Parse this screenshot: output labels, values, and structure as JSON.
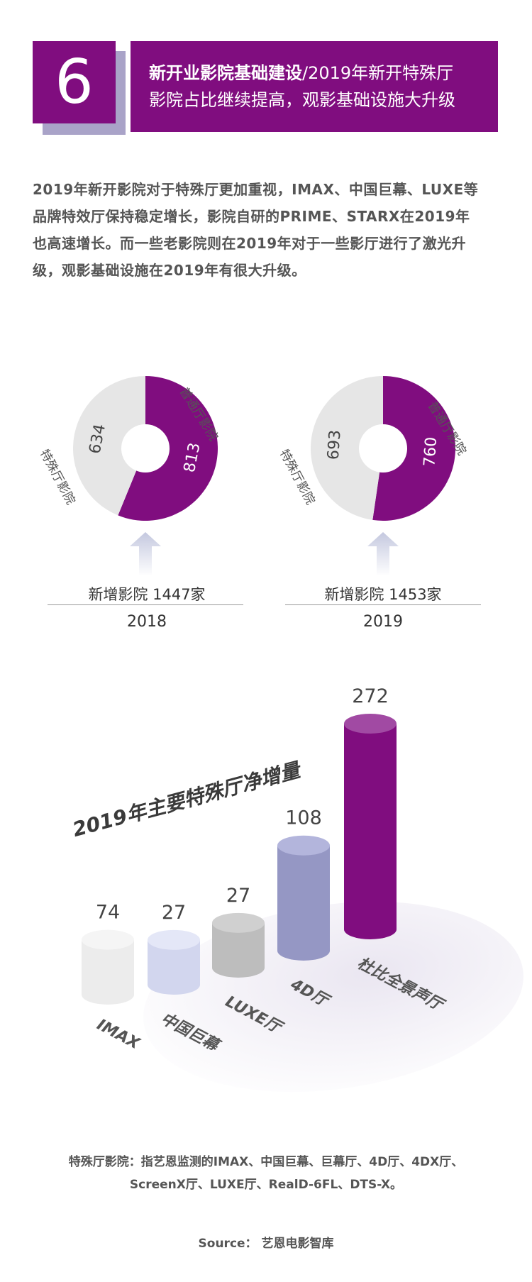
{
  "header": {
    "section_number": "6",
    "title_bold": "新开业影院基础建设",
    "title_sep": "/",
    "title_line1_rest": "2019年新开特殊厅",
    "title_line2": "影院占比继续提高，观影基础设施大升级"
  },
  "intro": {
    "lines": [
      "2019年新开影院对于特殊厅更加重视，IMAX、中国巨幕、LUXE等",
      "品牌特效厅保持稳定增长，影院自研的PRIME、STARX在2019年",
      "也高速增长。而一些老影院则在2019年对于一些影厅进行了激光升",
      "级，观影基础设施在2019年有很大升级。"
    ]
  },
  "colors": {
    "purple": "#800d7f",
    "grey_slice": "#e6e6e6",
    "arrow": "#c4c8df"
  },
  "chart_data": [
    {
      "type": "pie",
      "title": "2018",
      "subtitle": "新增影院 1447家",
      "labels": [
        "普通厅影院",
        "特殊厅影院"
      ],
      "values": [
        813,
        634
      ],
      "colors": [
        "#800d7f",
        "#e6e6e6"
      ]
    },
    {
      "type": "pie",
      "title": "2019",
      "subtitle": "新增影院 1453家",
      "labels": [
        "普通厅影院",
        "特殊厅影院"
      ],
      "values": [
        760,
        693
      ],
      "colors": [
        "#800d7f",
        "#e6e6e6"
      ]
    },
    {
      "type": "bar",
      "title": "2019年主要特殊厅净增量",
      "categories": [
        "IMAX",
        "中国巨幕",
        "LUXE厅",
        "4D厅",
        "杜比全景声厅"
      ],
      "values": [
        74,
        27,
        27,
        108,
        272
      ],
      "colors": [
        "#ececec",
        "#d2d6ee",
        "#bdbdbd",
        "#9597c4",
        "#800d7f"
      ],
      "top_colors": [
        "#f5f5f5",
        "#e4e7f7",
        "#d0d0d0",
        "#b3b5dc",
        "#a14aa3"
      ]
    }
  ],
  "donuts": [
    {
      "new_label": "新增影院 1447家",
      "year": "2018",
      "main_label": "普通厅影院",
      "special_label": "特殊厅影院",
      "main_value": "813",
      "special_value": "634"
    },
    {
      "new_label": "新增影院 1453家",
      "year": "2019",
      "main_label": "普通厅影院",
      "special_label": "特殊厅影院",
      "main_value": "760",
      "special_value": "693"
    }
  ],
  "footer": {
    "note_line1": "特殊厅影院：指艺恩监测的IMAX、中国巨幕、巨幕厅、4D厅、4DX厅、",
    "note_line2": "ScreenX厅、LUXE厅、RealD-6FL、DTS-X。",
    "source": "Source： 艺恩电影智库"
  }
}
